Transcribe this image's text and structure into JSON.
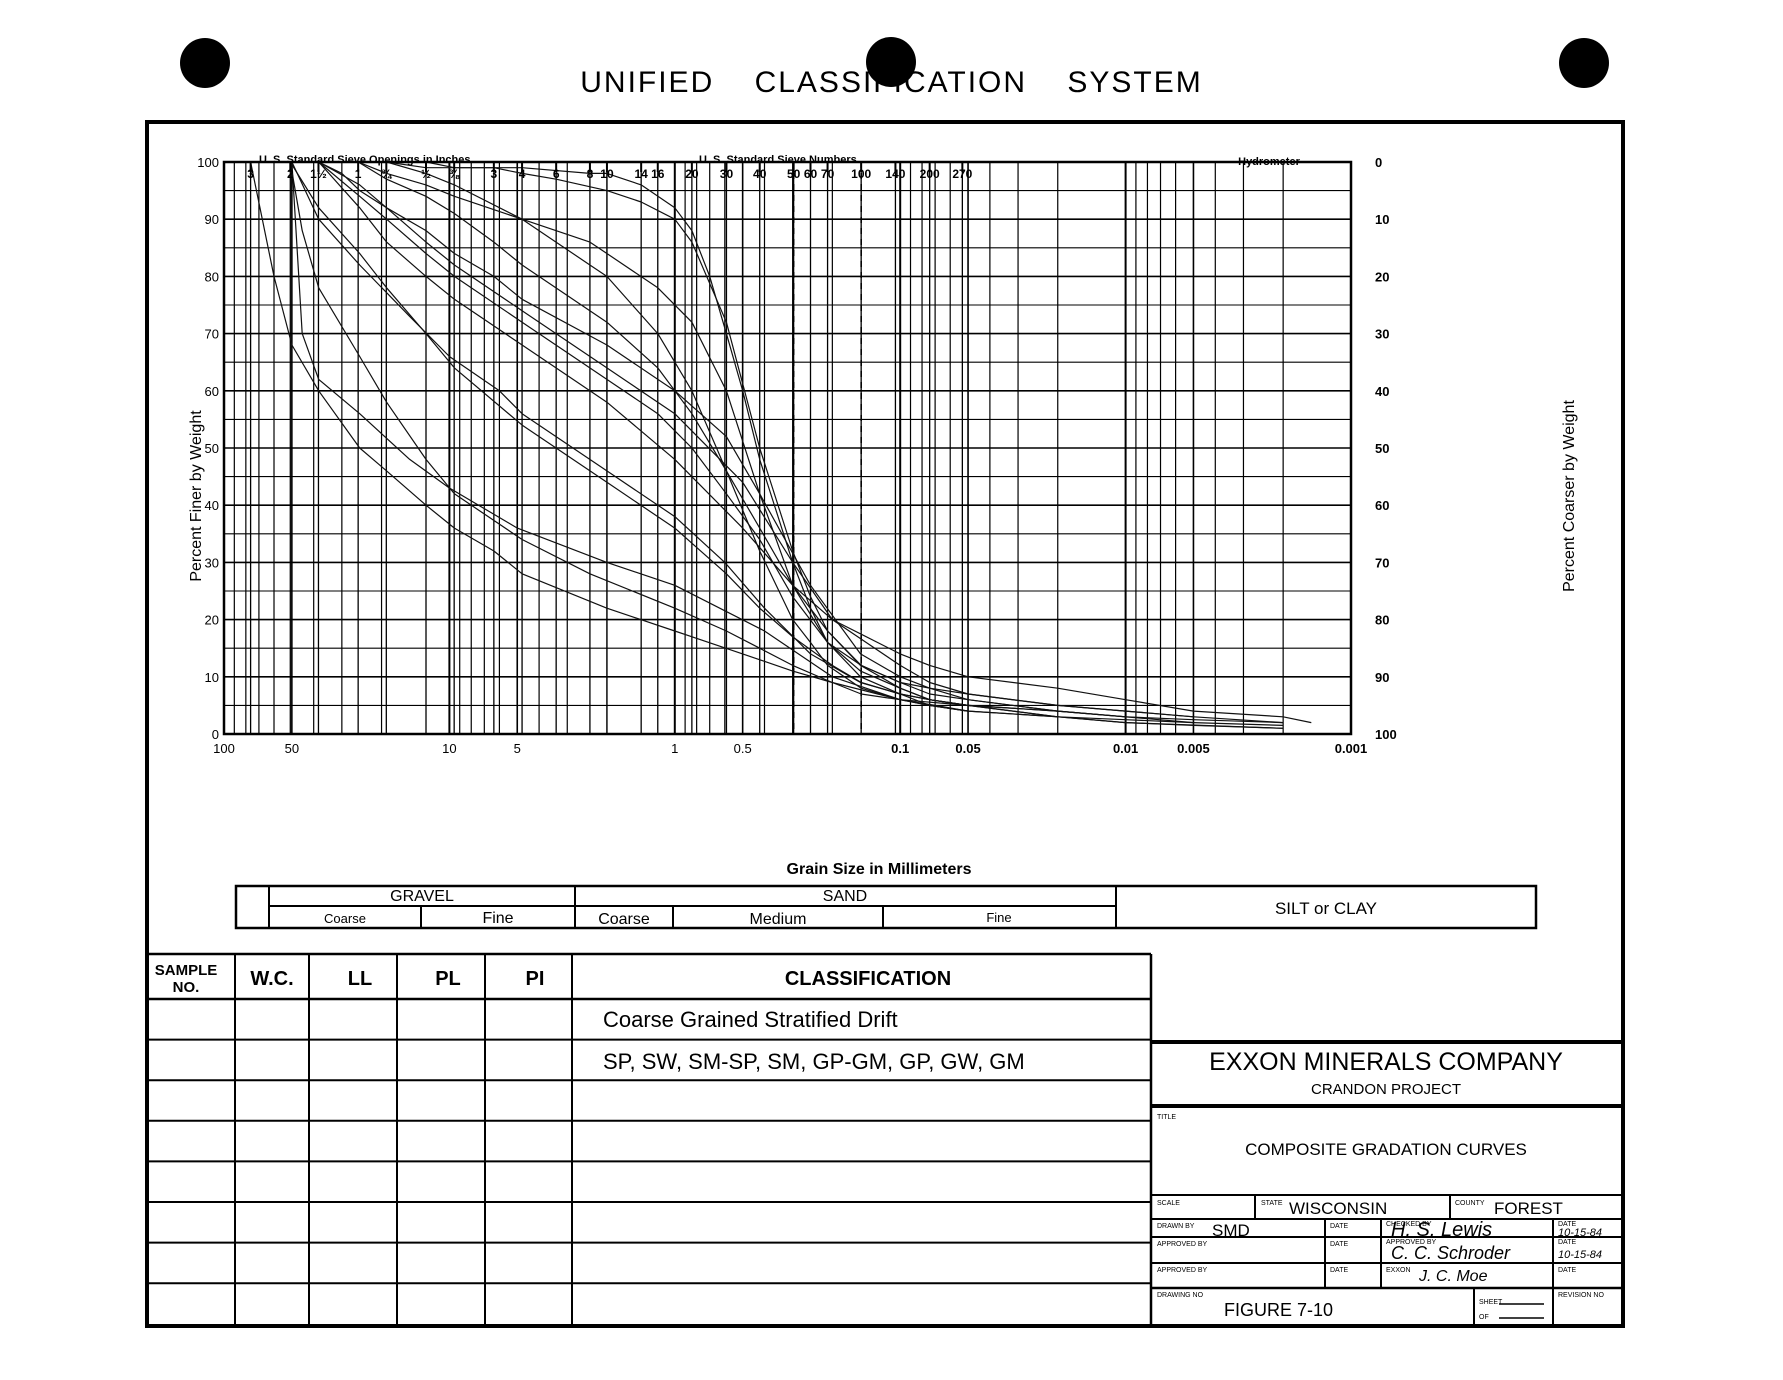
{
  "page": {
    "title": "UNIFIED CLASSIFICATION SYSTEM"
  },
  "chart_data": {
    "type": "line",
    "title": "",
    "xlabel": "Grain Size in Millimeters",
    "ylabel": "Percent Finer by Weight",
    "ylabel_right": "Percent Coarser by Weight",
    "xscale": "log",
    "xlim": [
      100,
      0.001
    ],
    "ylim": [
      0,
      100
    ],
    "x_ticks": [
      100,
      50,
      10,
      5,
      1,
      0.5,
      0.1,
      0.05,
      0.01,
      0.005,
      0.001
    ],
    "x_tick_labels": [
      "100",
      "50",
      "10",
      "5",
      "1",
      "0.5",
      "0.1",
      "0.05",
      "0.01",
      "0.005",
      "0.001"
    ],
    "y_ticks": [
      0,
      10,
      20,
      30,
      40,
      50,
      60,
      70,
      80,
      90,
      100
    ],
    "y_tick_labels_left": [
      "0",
      "10",
      "20",
      "30",
      "40",
      "50",
      "60",
      "70",
      "80",
      "90",
      "100"
    ],
    "y_tick_labels_right": [
      "100",
      "90",
      "80",
      "70",
      "60",
      "50",
      "40",
      "30",
      "20",
      "10",
      "0"
    ],
    "grid": true,
    "dashed_lines_mm": [
      0.297,
      0.149
    ],
    "top_scales": {
      "inches_label": "U. S. Standard Sieve Openings in Inches",
      "inches": [
        {
          "label": "3",
          "mm": 76.2
        },
        {
          "label": "2",
          "mm": 50.8
        },
        {
          "label": "1½",
          "mm": 38.1
        },
        {
          "label": "1",
          "mm": 25.4
        },
        {
          "label": "¾",
          "mm": 19.05
        },
        {
          "label": "½",
          "mm": 12.7
        },
        {
          "label": "⅜",
          "mm": 9.525
        }
      ],
      "numbers_label": "U. S. Standard Sieve Numbers",
      "numbers": [
        {
          "label": "3",
          "mm": 6.35
        },
        {
          "label": "4",
          "mm": 4.76
        },
        {
          "label": "6",
          "mm": 3.36
        },
        {
          "label": "8",
          "mm": 2.38
        },
        {
          "label": "10",
          "mm": 2.0
        },
        {
          "label": "14",
          "mm": 1.41
        },
        {
          "label": "16",
          "mm": 1.19
        },
        {
          "label": "20",
          "mm": 0.84
        },
        {
          "label": "30",
          "mm": 0.59
        },
        {
          "label": "40",
          "mm": 0.42
        },
        {
          "label": "50",
          "mm": 0.297
        },
        {
          "label": "60",
          "mm": 0.25
        },
        {
          "label": "70",
          "mm": 0.21
        },
        {
          "label": "100",
          "mm": 0.149
        },
        {
          "label": "140",
          "mm": 0.105
        },
        {
          "label": "200",
          "mm": 0.074
        },
        {
          "label": "270",
          "mm": 0.053
        }
      ],
      "hydrometer_label": "Hydrometer"
    },
    "series": [
      {
        "x": [
          76.2,
          50,
          45,
          38,
          25,
          15,
          10,
          5,
          2,
          1,
          0.4,
          0.2,
          0.1,
          0.07,
          0.05,
          0.02,
          0.01,
          0.005,
          0.002
        ],
        "y": [
          100,
          100,
          70,
          62,
          56,
          48,
          43,
          36,
          30,
          26,
          18,
          10,
          6,
          5,
          4,
          3,
          2,
          1.5,
          1
        ]
      },
      {
        "x": [
          50,
          38,
          25,
          15,
          10,
          6,
          4.76,
          2,
          1,
          0.6,
          0.4,
          0.25,
          0.15,
          0.1,
          0.074,
          0.05,
          0.02,
          0.01,
          0.002
        ],
        "y": [
          100,
          90,
          82,
          73,
          66,
          60,
          56,
          46,
          38,
          30,
          22,
          14,
          9,
          7,
          6,
          5,
          3,
          2,
          1
        ]
      },
      {
        "x": [
          38,
          25,
          19,
          12.7,
          9.5,
          4.76,
          2,
          1,
          0.5,
          0.3,
          0.2,
          0.1,
          0.074,
          0.05,
          0.02,
          0.01,
          0.005,
          0.002
        ],
        "y": [
          100,
          96,
          92,
          86,
          82,
          74,
          64,
          56,
          44,
          30,
          20,
          12,
          9,
          7,
          5,
          4,
          3,
          2
        ]
      },
      {
        "x": [
          38,
          30,
          25,
          19,
          12.7,
          9.5,
          6.35,
          4.76,
          2,
          1,
          0.59,
          0.42,
          0.25,
          0.15,
          0.1,
          0.074,
          0.05,
          0.02,
          0.005
        ],
        "y": [
          100,
          98,
          95,
          92,
          88,
          84,
          80,
          76,
          68,
          60,
          52,
          42,
          26,
          14,
          10,
          8,
          6,
          4,
          2
        ]
      },
      {
        "x": [
          25.4,
          19,
          12.7,
          9.5,
          4.76,
          2.38,
          2,
          1.19,
          0.84,
          0.59,
          0.42,
          0.3,
          0.21,
          0.15,
          0.1,
          0.074,
          0.05,
          0.02
        ],
        "y": [
          100,
          98,
          96,
          94,
          90,
          86,
          84,
          78,
          72,
          60,
          42,
          26,
          16,
          11,
          8,
          6,
          5,
          3
        ]
      },
      {
        "x": [
          19,
          12.7,
          9.5,
          6.35,
          4.76,
          3.36,
          2,
          1.41,
          1,
          0.84,
          0.59,
          0.42,
          0.3,
          0.25,
          0.21,
          0.15,
          0.1,
          0.074,
          0.05
        ],
        "y": [
          100,
          99,
          99,
          99,
          98,
          97,
          95,
          93,
          90,
          86,
          72,
          50,
          32,
          24,
          18,
          12,
          8,
          6,
          5
        ]
      },
      {
        "x": [
          12.7,
          9.5,
          4.76,
          2.38,
          2,
          1.41,
          1,
          0.84,
          0.7,
          0.59,
          0.5,
          0.42,
          0.3,
          0.25,
          0.21,
          0.15,
          0.1,
          0.074,
          0.05
        ],
        "y": [
          100,
          99,
          99,
          98,
          98,
          96,
          92,
          88,
          80,
          70,
          60,
          48,
          30,
          22,
          16,
          10,
          7,
          5,
          4
        ]
      },
      {
        "x": [
          76.2,
          60,
          50,
          38,
          25,
          19,
          12.7,
          9.5,
          6.35,
          4.76,
          2,
          1,
          0.5,
          0.3,
          0.2,
          0.1,
          0.05,
          0.02,
          0.01,
          0.005,
          0.002
        ],
        "y": [
          100,
          80,
          68,
          60,
          50,
          46,
          40,
          36,
          32,
          28,
          22,
          18,
          14,
          11,
          9,
          6,
          5,
          4,
          3,
          2.5,
          2
        ]
      },
      {
        "x": [
          50.8,
          45,
          38,
          25,
          19,
          12.7,
          9.5,
          4.76,
          2.38,
          1,
          0.59,
          0.42,
          0.3,
          0.2,
          0.149,
          0.1,
          0.074,
          0.05,
          0.02,
          0.01,
          0.005,
          0.002
        ],
        "y": [
          100,
          88,
          78,
          66,
          58,
          48,
          42,
          34,
          28,
          22,
          18,
          15,
          12,
          9,
          7,
          6,
          5,
          4,
          3,
          2.5,
          2,
          1.5
        ]
      },
      {
        "x": [
          38,
          25,
          19,
          12.7,
          9.5,
          4.76,
          2,
          1,
          0.5,
          0.3,
          0.2,
          0.1,
          0.074,
          0.05,
          0.02,
          0.01,
          0.005,
          0.002,
          0.0015
        ],
        "y": [
          100,
          92,
          86,
          80,
          76,
          68,
          58,
          48,
          36,
          26,
          20,
          14,
          12,
          10,
          8,
          6,
          4,
          3,
          2
        ]
      },
      {
        "x": [
          25.4,
          19,
          12.7,
          9.5,
          6.35,
          4.76,
          2,
          1.19,
          0.84,
          0.59,
          0.42,
          0.3,
          0.21,
          0.149,
          0.1,
          0.074,
          0.05,
          0.02,
          0.01
        ],
        "y": [
          100,
          97,
          94,
          91,
          86,
          82,
          72,
          64,
          56,
          46,
          36,
          26,
          18,
          12,
          9,
          7,
          6,
          4,
          3
        ]
      },
      {
        "x": [
          19,
          12.7,
          9.5,
          4.76,
          2.38,
          2,
          1.19,
          0.84,
          0.59,
          0.42,
          0.3,
          0.25,
          0.21,
          0.149,
          0.1,
          0.074,
          0.05
        ],
        "y": [
          100,
          98,
          96,
          90,
          82,
          80,
          70,
          60,
          46,
          32,
          20,
          16,
          12,
          8,
          6,
          5,
          4
        ]
      },
      {
        "x": [
          38,
          25,
          19,
          12.7,
          9.5,
          4.76,
          2,
          1.19,
          0.84,
          0.59,
          0.42,
          0.3,
          0.21,
          0.149,
          0.1,
          0.074,
          0.05,
          0.02,
          0.01,
          0.005
        ],
        "y": [
          100,
          94,
          90,
          84,
          80,
          72,
          62,
          56,
          50,
          42,
          34,
          24,
          16,
          12,
          9,
          8,
          7,
          5,
          4,
          3
        ]
      },
      {
        "x": [
          50.8,
          38,
          25,
          19,
          12.7,
          9.5,
          4.76,
          2,
          1,
          0.59,
          0.42,
          0.3,
          0.2,
          0.149,
          0.1,
          0.074,
          0.05,
          0.02
        ],
        "y": [
          100,
          92,
          84,
          78,
          70,
          64,
          54,
          44,
          36,
          28,
          22,
          17,
          12,
          9,
          7,
          6,
          5,
          4
        ]
      }
    ]
  },
  "soil_classes": {
    "gravel": "GRAVEL",
    "sand": "SAND",
    "gravel_coarse": "Coarse",
    "gravel_fine": "Fine",
    "sand_coarse": "Coarse",
    "sand_medium": "Medium",
    "sand_fine": "Fine",
    "silt_clay": "SILT or CLAY"
  },
  "table": {
    "headers": {
      "sample_no": "SAMPLE NO.",
      "wc": "W.C.",
      "ll": "LL",
      "pl": "PL",
      "pi": "PI",
      "classification": "CLASSIFICATION"
    },
    "rows": [
      {
        "classification": "Coarse Grained Stratified Drift"
      },
      {
        "classification": "SP, SW, SM-SP, SM, GP-GM, GP, GW, GM"
      },
      {
        "classification": ""
      },
      {
        "classification": ""
      },
      {
        "classification": ""
      },
      {
        "classification": ""
      },
      {
        "classification": ""
      },
      {
        "classification": ""
      }
    ]
  },
  "title_block": {
    "company": "EXXON MINERALS COMPANY",
    "project": "CRANDON PROJECT",
    "title_caption": "TITLE",
    "title": "COMPOSITE GRADATION CURVES",
    "scale_caption": "SCALE",
    "state_caption": "STATE",
    "state": "WISCONSIN",
    "county_caption": "COUNTY",
    "county": "FOREST",
    "drawn_by_caption": "DRAWN BY",
    "drawn_by": "SMD",
    "date_caption": "DATE",
    "checked_by_caption": "CHECKED BY",
    "checked_by": "H. S. Lewis",
    "checked_date": "10-15-84",
    "approved_by_caption": "APPROVED BY",
    "approved_by": "C. C. Schroder",
    "approved_date": "10-15-84",
    "exxon_caption": "EXXON",
    "exxon_sign": "J. C. Moe",
    "exxon_date": "",
    "drawing_no_caption": "DRAWING NO",
    "figure": "FIGURE 7-10",
    "sheet_caption": "SHEET",
    "of_caption": "OF",
    "revision_caption": "REVISION NO"
  }
}
